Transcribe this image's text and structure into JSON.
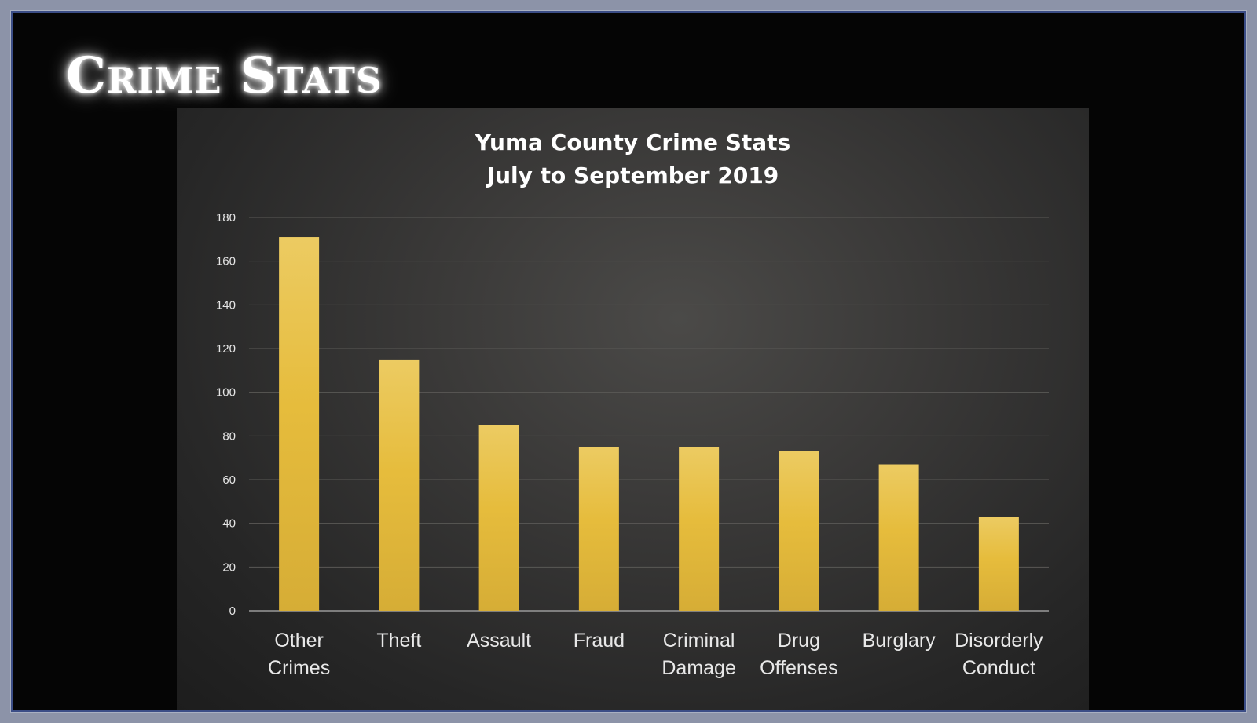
{
  "slide": {
    "title": "Crime Stats"
  },
  "chart_data": {
    "type": "bar",
    "title_lines": [
      "Yuma County Crime Stats",
      "July to September 2019"
    ],
    "categories": [
      [
        "Other",
        "Crimes"
      ],
      [
        "Theft"
      ],
      [
        "Assault"
      ],
      [
        "Fraud"
      ],
      [
        "Criminal",
        "Damage"
      ],
      [
        "Drug",
        "Offenses"
      ],
      [
        "Burglary"
      ],
      [
        "Disorderly",
        "Conduct"
      ]
    ],
    "values": [
      171,
      115,
      85,
      75,
      75,
      73,
      67,
      43
    ],
    "ylim": [
      0,
      180
    ],
    "yticks": [
      0,
      20,
      40,
      60,
      80,
      100,
      120,
      140,
      160,
      180
    ],
    "grid": true,
    "legend": "none",
    "colors": {
      "bar": "#e6bc3c",
      "bar_light": "#eccb62",
      "grid": "#5a5956",
      "axis": "#9a9a9a"
    }
  }
}
